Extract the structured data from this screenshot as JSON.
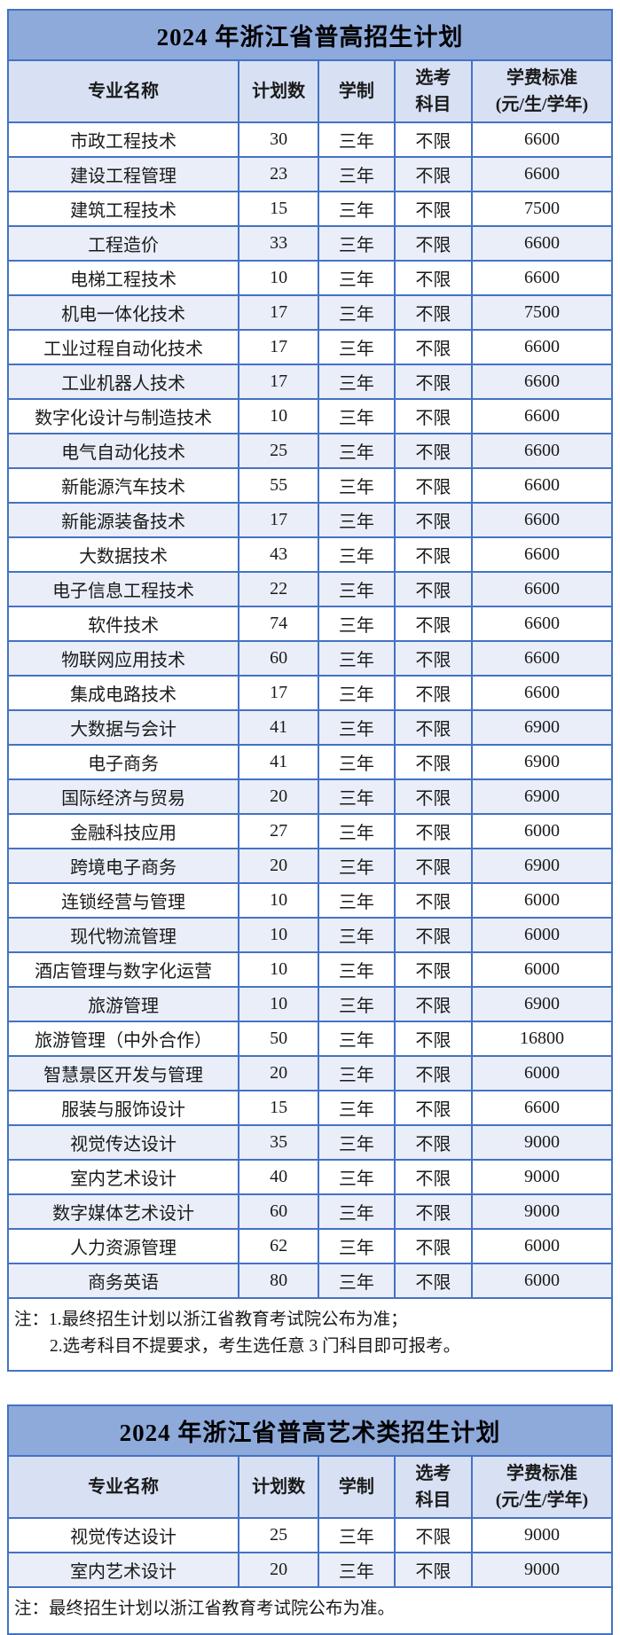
{
  "colors": {
    "table_border": "#4472C4",
    "title_bar_bg": "#8EAADB",
    "header_row_bg": "#D8E1F3",
    "banded_row_bg": "#EAEEF8",
    "text": "#1a1a1a"
  },
  "tables": [
    {
      "title": "2024 年浙江省普高招生计划",
      "headers": [
        "专业名称",
        "计划数",
        "学制",
        "选考\n科目",
        "学费标准\n(元/生/学年)"
      ],
      "rows": [
        [
          "市政工程技术",
          "30",
          "三年",
          "不限",
          "6600"
        ],
        [
          "建设工程管理",
          "23",
          "三年",
          "不限",
          "6600"
        ],
        [
          "建筑工程技术",
          "15",
          "三年",
          "不限",
          "7500"
        ],
        [
          "工程造价",
          "33",
          "三年",
          "不限",
          "6600"
        ],
        [
          "电梯工程技术",
          "10",
          "三年",
          "不限",
          "6600"
        ],
        [
          "机电一体化技术",
          "17",
          "三年",
          "不限",
          "7500"
        ],
        [
          "工业过程自动化技术",
          "17",
          "三年",
          "不限",
          "6600"
        ],
        [
          "工业机器人技术",
          "17",
          "三年",
          "不限",
          "6600"
        ],
        [
          "数字化设计与制造技术",
          "10",
          "三年",
          "不限",
          "6600"
        ],
        [
          "电气自动化技术",
          "25",
          "三年",
          "不限",
          "6600"
        ],
        [
          "新能源汽车技术",
          "55",
          "三年",
          "不限",
          "6600"
        ],
        [
          "新能源装备技术",
          "17",
          "三年",
          "不限",
          "6600"
        ],
        [
          "大数据技术",
          "43",
          "三年",
          "不限",
          "6600"
        ],
        [
          "电子信息工程技术",
          "22",
          "三年",
          "不限",
          "6600"
        ],
        [
          "软件技术",
          "74",
          "三年",
          "不限",
          "6600"
        ],
        [
          "物联网应用技术",
          "60",
          "三年",
          "不限",
          "6600"
        ],
        [
          "集成电路技术",
          "17",
          "三年",
          "不限",
          "6600"
        ],
        [
          "大数据与会计",
          "41",
          "三年",
          "不限",
          "6900"
        ],
        [
          "电子商务",
          "41",
          "三年",
          "不限",
          "6900"
        ],
        [
          "国际经济与贸易",
          "20",
          "三年",
          "不限",
          "6900"
        ],
        [
          "金融科技应用",
          "27",
          "三年",
          "不限",
          "6000"
        ],
        [
          "跨境电子商务",
          "20",
          "三年",
          "不限",
          "6900"
        ],
        [
          "连锁经营与管理",
          "10",
          "三年",
          "不限",
          "6000"
        ],
        [
          "现代物流管理",
          "10",
          "三年",
          "不限",
          "6000"
        ],
        [
          "酒店管理与数字化运营",
          "10",
          "三年",
          "不限",
          "6000"
        ],
        [
          "旅游管理",
          "10",
          "三年",
          "不限",
          "6900"
        ],
        [
          "旅游管理（中外合作）",
          "50",
          "三年",
          "不限",
          "16800"
        ],
        [
          "智慧景区开发与管理",
          "20",
          "三年",
          "不限",
          "6000"
        ],
        [
          "服装与服饰设计",
          "15",
          "三年",
          "不限",
          "6600"
        ],
        [
          "视觉传达设计",
          "35",
          "三年",
          "不限",
          "9000"
        ],
        [
          "室内艺术设计",
          "40",
          "三年",
          "不限",
          "9000"
        ],
        [
          "数字媒体艺术设计",
          "60",
          "三年",
          "不限",
          "9000"
        ],
        [
          "人力资源管理",
          "62",
          "三年",
          "不限",
          "6000"
        ],
        [
          "商务英语",
          "80",
          "三年",
          "不限",
          "6000"
        ]
      ],
      "notes": [
        "注：1.最终招生计划以浙江省教育考试院公布为准；",
        "2.选考科目不提要求，考生选任意 3 门科目即可报考。"
      ]
    },
    {
      "title": "2024 年浙江省普高艺术类招生计划",
      "headers": [
        "专业名称",
        "计划数",
        "学制",
        "选考\n科目",
        "学费标准\n(元/生/学年)"
      ],
      "rows": [
        [
          "视觉传达设计",
          "25",
          "三年",
          "不限",
          "9000"
        ],
        [
          "室内艺术设计",
          "20",
          "三年",
          "不限",
          "9000"
        ]
      ],
      "notes": [
        "注：最终招生计划以浙江省教育考试院公布为准。"
      ]
    }
  ]
}
